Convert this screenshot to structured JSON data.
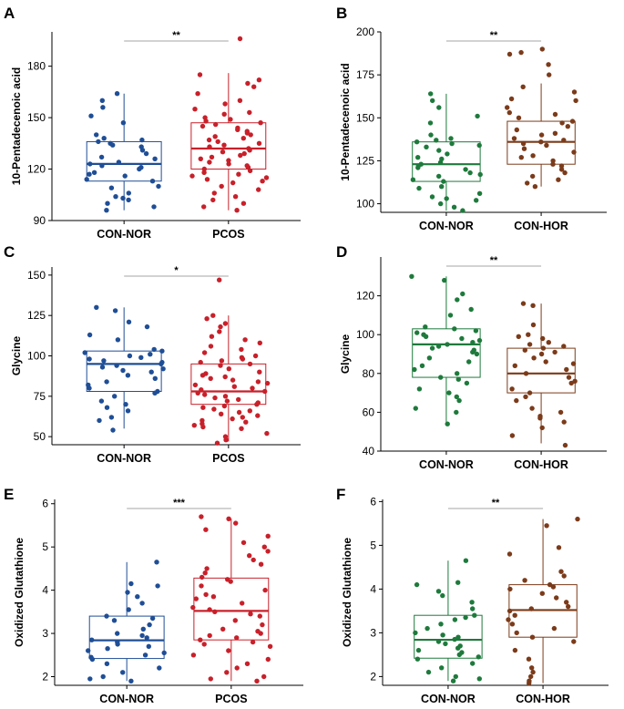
{
  "figure": {
    "background": "#ffffff"
  },
  "chart_data": [
    {
      "panel": "A",
      "type": "box",
      "ylabel": "10-Pentadecenoic acid",
      "ylim": [
        90,
        200
      ],
      "yticks": [
        90,
        120,
        150,
        180
      ],
      "categories": [
        "CON-NOR",
        "PCOS"
      ],
      "colors": [
        "#1f4e96",
        "#c8202a"
      ],
      "significance": "**",
      "series": [
        {
          "name": "CON-NOR",
          "min": 96,
          "q1": 113,
          "median": 123,
          "q3": 136,
          "max": 164,
          "points": [
            164,
            160,
            156,
            151,
            147,
            140,
            138,
            137,
            136,
            135,
            134,
            133,
            131,
            129,
            127,
            126,
            124,
            123,
            122,
            121,
            120,
            118,
            117,
            116,
            114,
            113,
            110,
            109,
            106,
            104,
            103,
            102,
            100,
            98,
            96
          ]
        },
        {
          "name": "PCOS",
          "min": 96,
          "q1": 120,
          "median": 132,
          "q3": 147,
          "max": 176,
          "points": [
            196,
            175,
            172,
            170,
            168,
            164,
            160,
            158,
            155,
            153,
            152,
            150,
            149,
            148,
            147,
            146,
            145,
            144,
            143,
            142,
            141,
            140,
            139,
            138,
            137,
            136,
            135,
            134,
            133,
            132,
            131,
            130,
            129,
            128,
            127,
            126,
            125,
            124,
            123,
            122,
            121,
            120,
            119,
            118,
            117,
            116,
            115,
            114,
            113,
            112,
            110,
            108,
            106,
            104,
            102,
            100,
            98,
            96
          ]
        }
      ]
    },
    {
      "panel": "B",
      "type": "box",
      "ylabel": "10-Pentadecenoic acid",
      "ylim": [
        95,
        200
      ],
      "yticks": [
        100,
        125,
        150,
        175,
        200
      ],
      "categories": [
        "CON-NOR",
        "CON-HOR"
      ],
      "colors": [
        "#1e7a3c",
        "#7b3b1a"
      ],
      "significance": "**",
      "series": [
        {
          "name": "CON-NOR",
          "min": 96,
          "q1": 113,
          "median": 123,
          "q3": 136,
          "max": 164,
          "points": [
            164,
            160,
            156,
            151,
            147,
            140,
            138,
            137,
            136,
            135,
            134,
            133,
            131,
            129,
            127,
            126,
            124,
            123,
            122,
            121,
            120,
            118,
            117,
            116,
            114,
            113,
            110,
            109,
            106,
            104,
            103,
            102,
            100,
            98,
            96
          ]
        },
        {
          "name": "CON-HOR",
          "min": 110,
          "q1": 123,
          "median": 136,
          "q3": 148,
          "max": 170,
          "points": [
            190,
            188,
            187,
            181,
            175,
            168,
            165,
            161,
            160,
            156,
            153,
            152,
            150,
            148,
            147,
            145,
            143,
            141,
            140,
            138,
            137,
            136,
            135,
            134,
            132,
            130,
            128,
            127,
            125,
            123,
            122,
            120,
            118,
            116,
            114,
            112,
            110
          ]
        }
      ]
    },
    {
      "panel": "C",
      "type": "box",
      "ylabel": "Glycine",
      "ylim": [
        45,
        155
      ],
      "yticks": [
        50,
        75,
        100,
        125,
        150
      ],
      "categories": [
        "CON-NOR",
        "PCOS"
      ],
      "colors": [
        "#1f4e96",
        "#c8202a"
      ],
      "significance": "*",
      "series": [
        {
          "name": "CON-NOR",
          "min": 55,
          "q1": 78,
          "median": 95,
          "q3": 103,
          "max": 130,
          "points": [
            130,
            128,
            121,
            118,
            113,
            110,
            104,
            103,
            102,
            101,
            100,
            99,
            98,
            97,
            96,
            95,
            94,
            93,
            92,
            91,
            90,
            88,
            86,
            84,
            82,
            80,
            78,
            77,
            75,
            72,
            70,
            68,
            66,
            62,
            60,
            54
          ]
        },
        {
          "name": "PCOS",
          "min": 47,
          "q1": 70,
          "median": 78,
          "q3": 95,
          "max": 125,
          "points": [
            147,
            125,
            123,
            120,
            118,
            115,
            112,
            110,
            108,
            106,
            104,
            102,
            100,
            99,
            98,
            97,
            96,
            95,
            94,
            92,
            90,
            89,
            88,
            87,
            86,
            85,
            84,
            83,
            82,
            81,
            80,
            79,
            78,
            77,
            76,
            75,
            74,
            73,
            72,
            71,
            70,
            69,
            68,
            67,
            66,
            65,
            64,
            63,
            62,
            61,
            60,
            59,
            58,
            57,
            56,
            55,
            52,
            50,
            48,
            46
          ]
        }
      ]
    },
    {
      "panel": "D",
      "type": "box",
      "ylabel": "Glycine",
      "ylim": [
        40,
        140
      ],
      "yticks": [
        40,
        60,
        80,
        100,
        120
      ],
      "categories": [
        "CON-NOR",
        "CON-HOR"
      ],
      "colors": [
        "#1e7a3c",
        "#7b3b1a"
      ],
      "significance": "**",
      "series": [
        {
          "name": "CON-NOR",
          "min": 55,
          "q1": 78,
          "median": 95,
          "q3": 103,
          "max": 130,
          "points": [
            130,
            128,
            121,
            118,
            113,
            110,
            104,
            103,
            102,
            101,
            100,
            99,
            98,
            97,
            96,
            95,
            94,
            93,
            92,
            91,
            90,
            88,
            86,
            84,
            82,
            80,
            78,
            77,
            75,
            72,
            70,
            68,
            66,
            62,
            60,
            54
          ]
        },
        {
          "name": "CON-HOR",
          "min": 44,
          "q1": 70,
          "median": 80,
          "q3": 93,
          "max": 116,
          "points": [
            116,
            115,
            105,
            100,
            99,
            98,
            96,
            95,
            94,
            93,
            92,
            91,
            90,
            88,
            86,
            85,
            84,
            82,
            80,
            78,
            76,
            75,
            72,
            70,
            68,
            66,
            62,
            60,
            58,
            57,
            55,
            52,
            48,
            43
          ]
        }
      ]
    },
    {
      "panel": "E",
      "type": "box",
      "ylabel": "Oxidized Glutathione",
      "ylim": [
        1.8,
        6.1
      ],
      "yticks": [
        2,
        3,
        4,
        5,
        6
      ],
      "categories": [
        "CON-NOR",
        "PCOS"
      ],
      "colors": [
        "#1f4e96",
        "#c8202a"
      ],
      "significance": "***",
      "series": [
        {
          "name": "CON-NOR",
          "min": 1.9,
          "q1": 2.42,
          "median": 2.84,
          "q3": 3.4,
          "max": 4.65,
          "points": [
            4.65,
            4.15,
            4.1,
            3.95,
            3.85,
            3.7,
            3.55,
            3.4,
            3.35,
            3.3,
            3.2,
            3.1,
            3.0,
            2.95,
            2.9,
            2.85,
            2.8,
            2.75,
            2.7,
            2.65,
            2.6,
            2.55,
            2.5,
            2.45,
            2.4,
            2.3,
            2.2,
            2.1,
            2.0,
            1.95,
            1.9
          ]
        },
        {
          "name": "PCOS",
          "min": 1.9,
          "q1": 2.85,
          "median": 3.52,
          "q3": 4.28,
          "max": 5.65,
          "points": [
            5.7,
            5.65,
            5.55,
            5.4,
            5.25,
            5.1,
            5.0,
            4.9,
            4.8,
            4.7,
            4.6,
            4.5,
            4.4,
            4.3,
            4.25,
            4.2,
            4.1,
            4.0,
            3.9,
            3.85,
            3.8,
            3.7,
            3.6,
            3.55,
            3.5,
            3.45,
            3.4,
            3.3,
            3.2,
            3.1,
            3.05,
            3.0,
            2.95,
            2.9,
            2.85,
            2.8,
            2.75,
            2.7,
            2.6,
            2.5,
            2.4,
            2.3,
            2.2,
            2.1,
            2.0,
            1.95,
            1.9
          ]
        }
      ]
    },
    {
      "panel": "F",
      "type": "box",
      "ylabel": "Oxidized Glutathione",
      "ylim": [
        1.8,
        6.05
      ],
      "yticks": [
        2,
        3,
        4,
        5,
        6
      ],
      "categories": [
        "CON-NOR",
        "CON-HOR"
      ],
      "colors": [
        "#1e7a3c",
        "#7b3b1a"
      ],
      "significance": "**",
      "series": [
        {
          "name": "CON-NOR",
          "min": 1.9,
          "q1": 2.42,
          "median": 2.84,
          "q3": 3.4,
          "max": 4.65,
          "points": [
            4.65,
            4.15,
            4.1,
            3.95,
            3.85,
            3.7,
            3.55,
            3.4,
            3.35,
            3.3,
            3.2,
            3.1,
            3.0,
            2.95,
            2.9,
            2.85,
            2.8,
            2.75,
            2.7,
            2.65,
            2.6,
            2.55,
            2.5,
            2.45,
            2.4,
            2.3,
            2.2,
            2.1,
            2.0,
            1.95,
            1.9
          ]
        },
        {
          "name": "CON-HOR",
          "min": 1.85,
          "q1": 2.9,
          "median": 3.52,
          "q3": 4.1,
          "max": 5.6,
          "points": [
            5.6,
            5.45,
            4.95,
            4.8,
            4.4,
            4.3,
            4.2,
            4.1,
            4.05,
            4.0,
            3.9,
            3.8,
            3.7,
            3.6,
            3.55,
            3.5,
            3.4,
            3.3,
            3.2,
            3.1,
            3.0,
            2.9,
            2.8,
            2.6,
            2.4,
            2.2,
            2.1,
            2.0,
            1.9,
            1.85
          ]
        }
      ]
    }
  ]
}
